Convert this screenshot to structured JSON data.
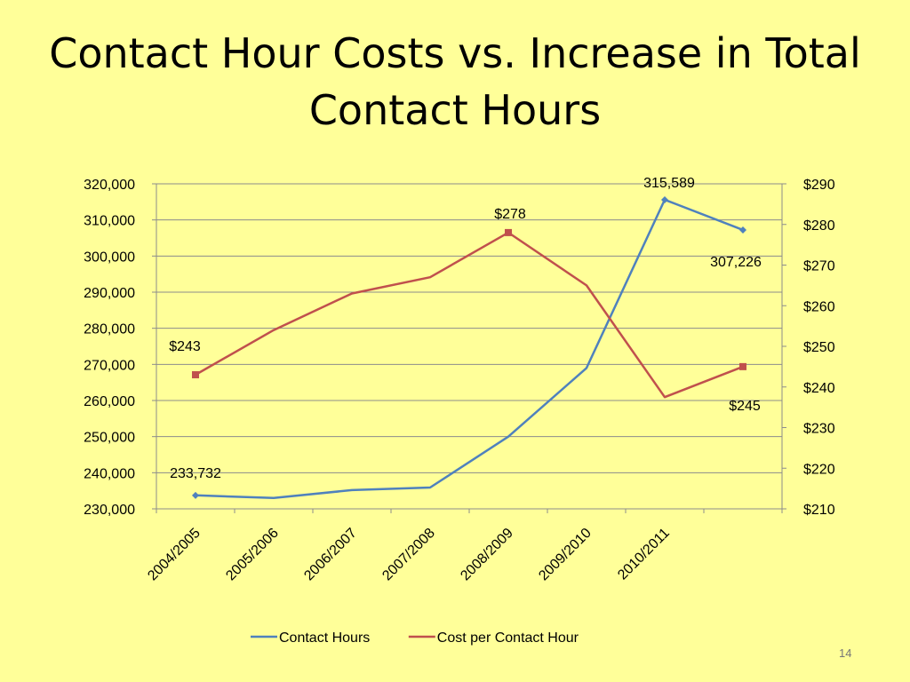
{
  "slide": {
    "title": "Contact Hour Costs vs. Increase in Total Contact Hours",
    "number": "14"
  },
  "chart_data": {
    "type": "line",
    "title": "",
    "categories": [
      "2004/2005",
      "2005/2006",
      "2006/2007",
      "2007/2008",
      "2008/2009",
      "2009/2010",
      "2010/2011"
    ],
    "x": [
      "2004/2005",
      "2005/2006",
      "2006/2007",
      "2007/2008",
      "2008/2009",
      "2009/2010",
      "2010/2011",
      ""
    ],
    "series": [
      {
        "name": "Contact Hours",
        "axis": "left",
        "color": "#4f81bd",
        "marker": "diamond",
        "values": [
          233732,
          233000,
          235200,
          235900,
          250000,
          269000,
          315589,
          307226
        ]
      },
      {
        "name": "Cost per Contact Hour",
        "axis": "right",
        "color": "#c0504d",
        "marker": "square",
        "values": [
          243,
          254,
          263,
          267,
          278,
          265,
          237.5,
          245
        ]
      }
    ],
    "data_labels": [
      {
        "series": 0,
        "index": 0,
        "text": "233,732"
      },
      {
        "series": 0,
        "index": 6,
        "text": "315,589"
      },
      {
        "series": 0,
        "index": 7,
        "text": "307,226"
      },
      {
        "series": 1,
        "index": 0,
        "text": "$243"
      },
      {
        "series": 1,
        "index": 4,
        "text": "$278"
      },
      {
        "series": 1,
        "index": 7,
        "text": "$245"
      }
    ],
    "y_left": {
      "min": 230000,
      "max": 320000,
      "step": 10000,
      "ticks": [
        "230,000",
        "240,000",
        "250,000",
        "260,000",
        "270,000",
        "280,000",
        "290,000",
        "300,000",
        "310,000",
        "320,000"
      ]
    },
    "y_right": {
      "min": 210,
      "max": 290,
      "step": 10,
      "ticks": [
        "$210",
        "$220",
        "$230",
        "$240",
        "$250",
        "$260",
        "$270",
        "$280",
        "$290"
      ]
    },
    "grid": true,
    "legend_position": "bottom",
    "marker_points": {
      "0": [
        0,
        6,
        7
      ],
      "1": [
        0,
        4,
        7
      ]
    }
  }
}
